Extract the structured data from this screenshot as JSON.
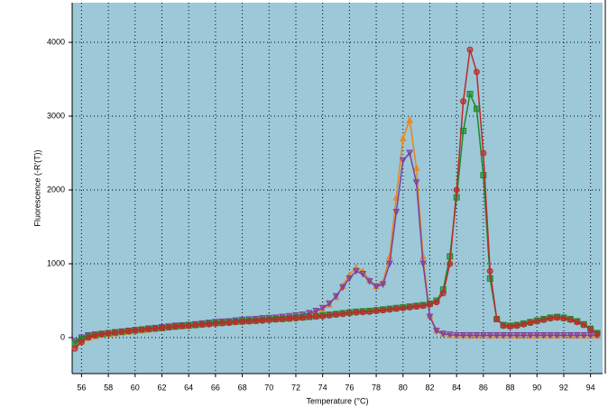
{
  "chart_data": {
    "type": "line",
    "x_label": "Temperature (°C)",
    "y_label": "Fluorescence (-R'(T))",
    "xlim": [
      55.3,
      94.9
    ],
    "ylim": [
      -488,
      4537
    ],
    "xticks": [
      56,
      58,
      60,
      62,
      64,
      66,
      68,
      70,
      72,
      74,
      76,
      78,
      80,
      82,
      84,
      86,
      88,
      90,
      92,
      94
    ],
    "yticks": [
      0,
      1000,
      2000,
      3000,
      4000
    ],
    "grid": true,
    "background": "#9cc8d8",
    "x": [
      55.5,
      56,
      56.5,
      57,
      57.5,
      58,
      58.5,
      59,
      59.5,
      60,
      60.5,
      61,
      61.5,
      62,
      62.5,
      63,
      63.5,
      64,
      64.5,
      65,
      65.5,
      66,
      66.5,
      67,
      67.5,
      68,
      68.5,
      69,
      69.5,
      70,
      70.5,
      71,
      71.5,
      72,
      72.5,
      73,
      73.5,
      74,
      74.5,
      75,
      75.5,
      76,
      76.5,
      77,
      77.5,
      78,
      78.5,
      79,
      79.5,
      80,
      80.5,
      81,
      81.5,
      82,
      82.5,
      83,
      83.5,
      84,
      84.5,
      85,
      85.5,
      86,
      86.5,
      87,
      87.5,
      88,
      88.5,
      89,
      89.5,
      90,
      90.5,
      91,
      91.5,
      92,
      92.5,
      93,
      93.5,
      94,
      94.5
    ],
    "series": [
      {
        "color": "#e8861a",
        "values": [
          -100,
          -50,
          0,
          20,
          40,
          50,
          60,
          70,
          80,
          90,
          100,
          110,
          120,
          130,
          140,
          150,
          155,
          160,
          170,
          180,
          190,
          200,
          205,
          210,
          220,
          230,
          235,
          240,
          250,
          255,
          260,
          270,
          280,
          290,
          300,
          320,
          350,
          390,
          450,
          550,
          700,
          850,
          950,
          900,
          780,
          700,
          750,
          1100,
          1900,
          2700,
          2950,
          2300,
          1100,
          300,
          100,
          60,
          40,
          30,
          30,
          30,
          30,
          30,
          30,
          30,
          30,
          30,
          30,
          30,
          30,
          30,
          30,
          30,
          30,
          30,
          30,
          30,
          30,
          30,
          30
        ]
      },
      {
        "color": "#7b3fa0",
        "values": [
          -50,
          0,
          30,
          40,
          50,
          60,
          70,
          80,
          90,
          100,
          110,
          120,
          130,
          140,
          150,
          160,
          165,
          170,
          180,
          190,
          200,
          210,
          215,
          220,
          230,
          240,
          245,
          250,
          260,
          265,
          270,
          280,
          290,
          300,
          310,
          330,
          360,
          400,
          460,
          560,
          680,
          800,
          900,
          860,
          760,
          690,
          720,
          1000,
          1700,
          2400,
          2500,
          2100,
          1000,
          280,
          90,
          50,
          40,
          30,
          30,
          30,
          30,
          30,
          30,
          30,
          30,
          30,
          30,
          30,
          30,
          30,
          30,
          30,
          30,
          30,
          30,
          30,
          30,
          30,
          30
        ]
      },
      {
        "color": "#1a8a2a",
        "values": [
          -80,
          -20,
          20,
          40,
          50,
          60,
          70,
          80,
          90,
          100,
          110,
          120,
          125,
          130,
          140,
          150,
          160,
          165,
          170,
          180,
          190,
          195,
          200,
          210,
          215,
          220,
          225,
          230,
          240,
          245,
          250,
          255,
          260,
          270,
          275,
          280,
          290,
          300,
          310,
          320,
          330,
          340,
          350,
          355,
          360,
          370,
          380,
          390,
          400,
          410,
          420,
          430,
          440,
          460,
          500,
          650,
          1100,
          1900,
          2800,
          3300,
          3100,
          2200,
          800,
          250,
          170,
          160,
          170,
          190,
          210,
          230,
          250,
          270,
          280,
          270,
          250,
          220,
          180,
          120,
          60
        ]
      },
      {
        "color": "#c0282a",
        "values": [
          -150,
          -60,
          0,
          30,
          50,
          60,
          70,
          80,
          90,
          100,
          110,
          115,
          120,
          130,
          140,
          150,
          155,
          160,
          170,
          175,
          180,
          190,
          195,
          200,
          210,
          215,
          220,
          225,
          230,
          240,
          245,
          250,
          255,
          260,
          270,
          280,
          285,
          290,
          300,
          310,
          320,
          330,
          340,
          345,
          350,
          360,
          370,
          380,
          390,
          400,
          410,
          420,
          430,
          450,
          480,
          600,
          1000,
          2000,
          3200,
          3900,
          3600,
          2500,
          900,
          250,
          160,
          150,
          160,
          180,
          200,
          220,
          240,
          260,
          270,
          260,
          240,
          210,
          170,
          110,
          50
        ]
      }
    ]
  }
}
